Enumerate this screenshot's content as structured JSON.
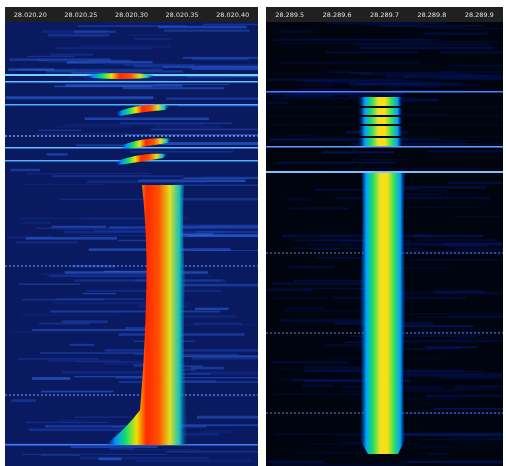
{
  "panels": [
    {
      "scale_labels": [
        "28.020.20",
        "28.020.25",
        "28.020.30",
        "28.020.35",
        "28.020.40"
      ]
    },
    {
      "scale_labels": [
        "28.289.5",
        "28.289.6",
        "28.289.7",
        "28.289.8",
        "28.289.9"
      ]
    }
  ]
}
